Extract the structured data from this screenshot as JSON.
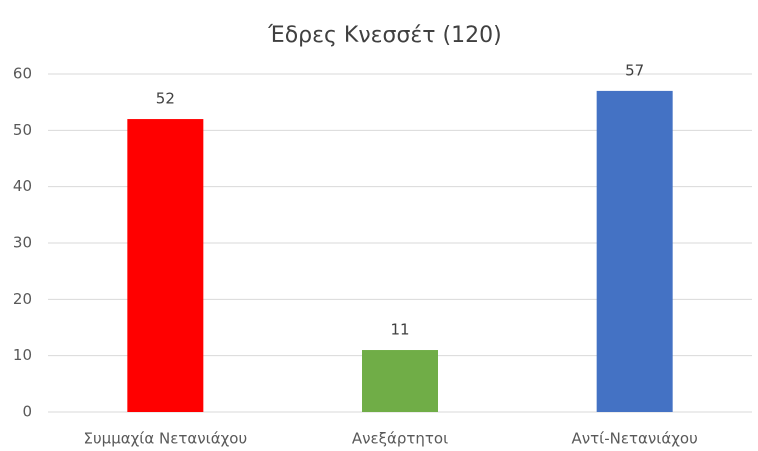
{
  "chart_data": {
    "type": "bar",
    "title": "Έδρες Κνεσσέτ (120)",
    "categories": [
      "Συμμαχία Νετανιάχου",
      "Ανεξάρτητοι",
      "Αντί-Νετανιάχου"
    ],
    "values": [
      52,
      11,
      57
    ],
    "colors": [
      "#ff0000",
      "#70ad47",
      "#4472c4"
    ],
    "ylim": [
      0,
      60
    ],
    "yticks": [
      0,
      10,
      20,
      30,
      40,
      50,
      60
    ],
    "grid": true
  }
}
